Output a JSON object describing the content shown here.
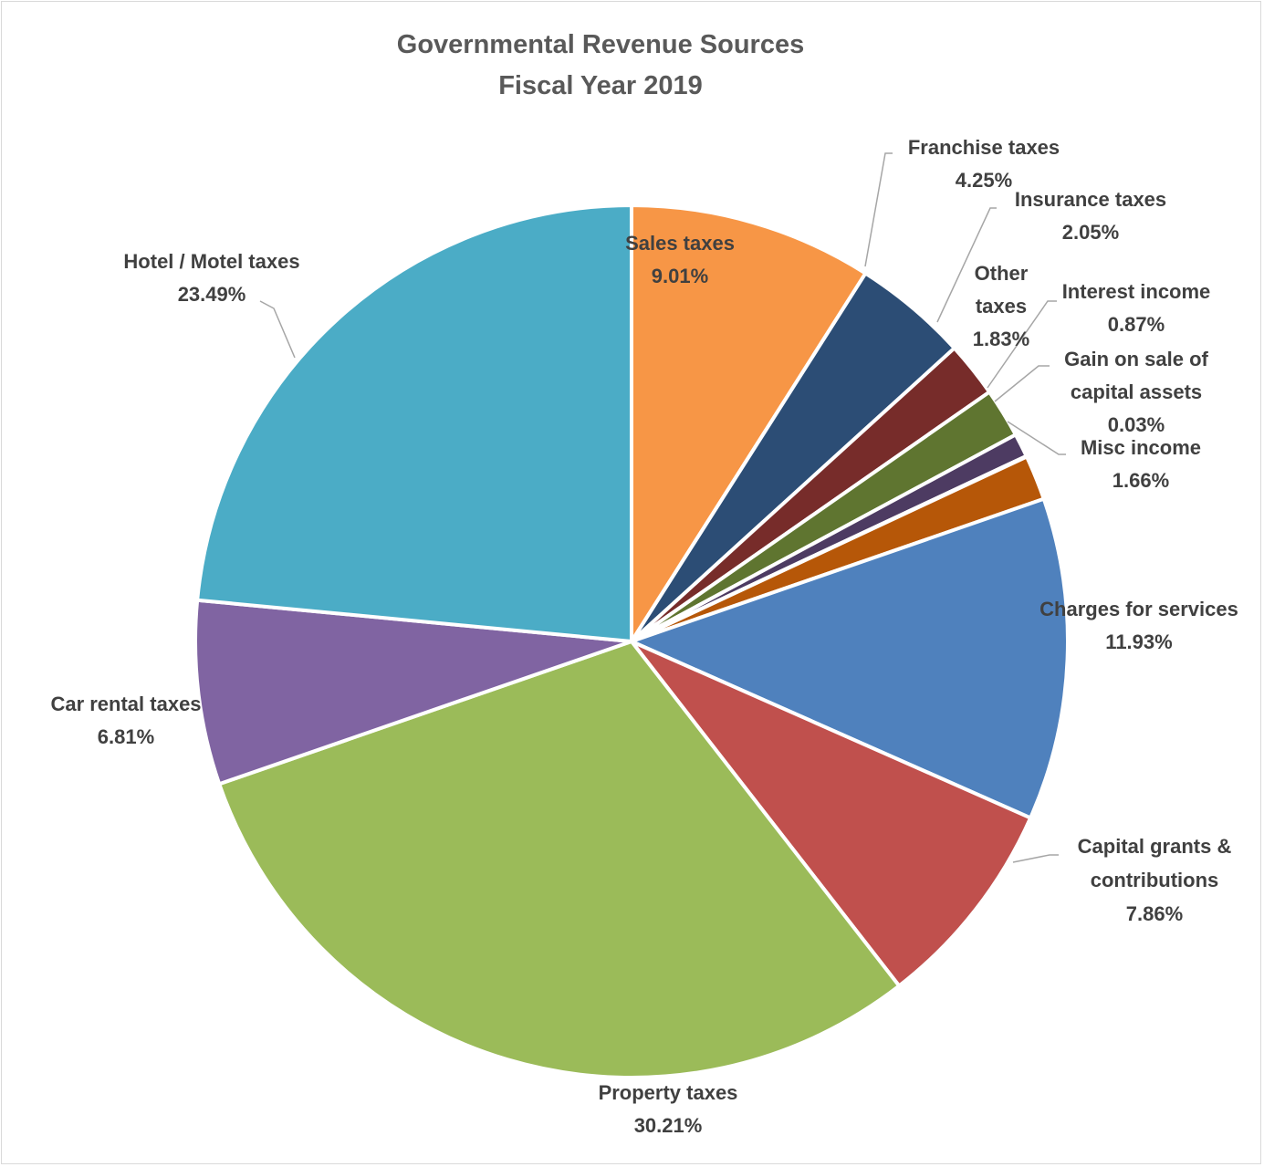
{
  "chart_data": {
    "type": "pie",
    "title": [
      "Governmental Revenue Sources",
      "Fiscal Year 2019"
    ],
    "unit": "%",
    "start_angle_deg": 0,
    "direction": "clockwise",
    "slices": [
      {
        "name": "Sales taxes",
        "value": 9.01,
        "label": "9.01%",
        "color": "#F79646"
      },
      {
        "name": "Franchise taxes",
        "value": 4.25,
        "label": "4.25%",
        "color": "#2C4D75"
      },
      {
        "name": "Insurance taxes",
        "value": 2.05,
        "label": "2.05%",
        "color": "#772C2A"
      },
      {
        "name": "Other taxes",
        "value": 1.83,
        "label": "1.83%",
        "color": "#5F7530"
      },
      {
        "name": "Interest income",
        "value": 0.87,
        "label": "0.87%",
        "color": "#4D3B62"
      },
      {
        "name": "Gain on sale of capital assets",
        "value": 0.03,
        "label": "0.03%",
        "color": "#276A7C"
      },
      {
        "name": "Misc income",
        "value": 1.66,
        "label": "1.66%",
        "color": "#B65708"
      },
      {
        "name": "Charges for services",
        "value": 11.93,
        "label": "11.93%",
        "color": "#4F81BD"
      },
      {
        "name": "Capital grants & contributions",
        "value": 7.86,
        "label": "7.86%",
        "color": "#C0504D"
      },
      {
        "name": "Property taxes",
        "value": 30.21,
        "label": "30.21%",
        "color": "#9BBB59"
      },
      {
        "name": "Car rental taxes",
        "value": 6.81,
        "label": "6.81%",
        "color": "#8064A2"
      },
      {
        "name": "Hotel / Motel taxes",
        "value": 23.49,
        "label": "23.49%",
        "color": "#4BACC6"
      }
    ]
  }
}
